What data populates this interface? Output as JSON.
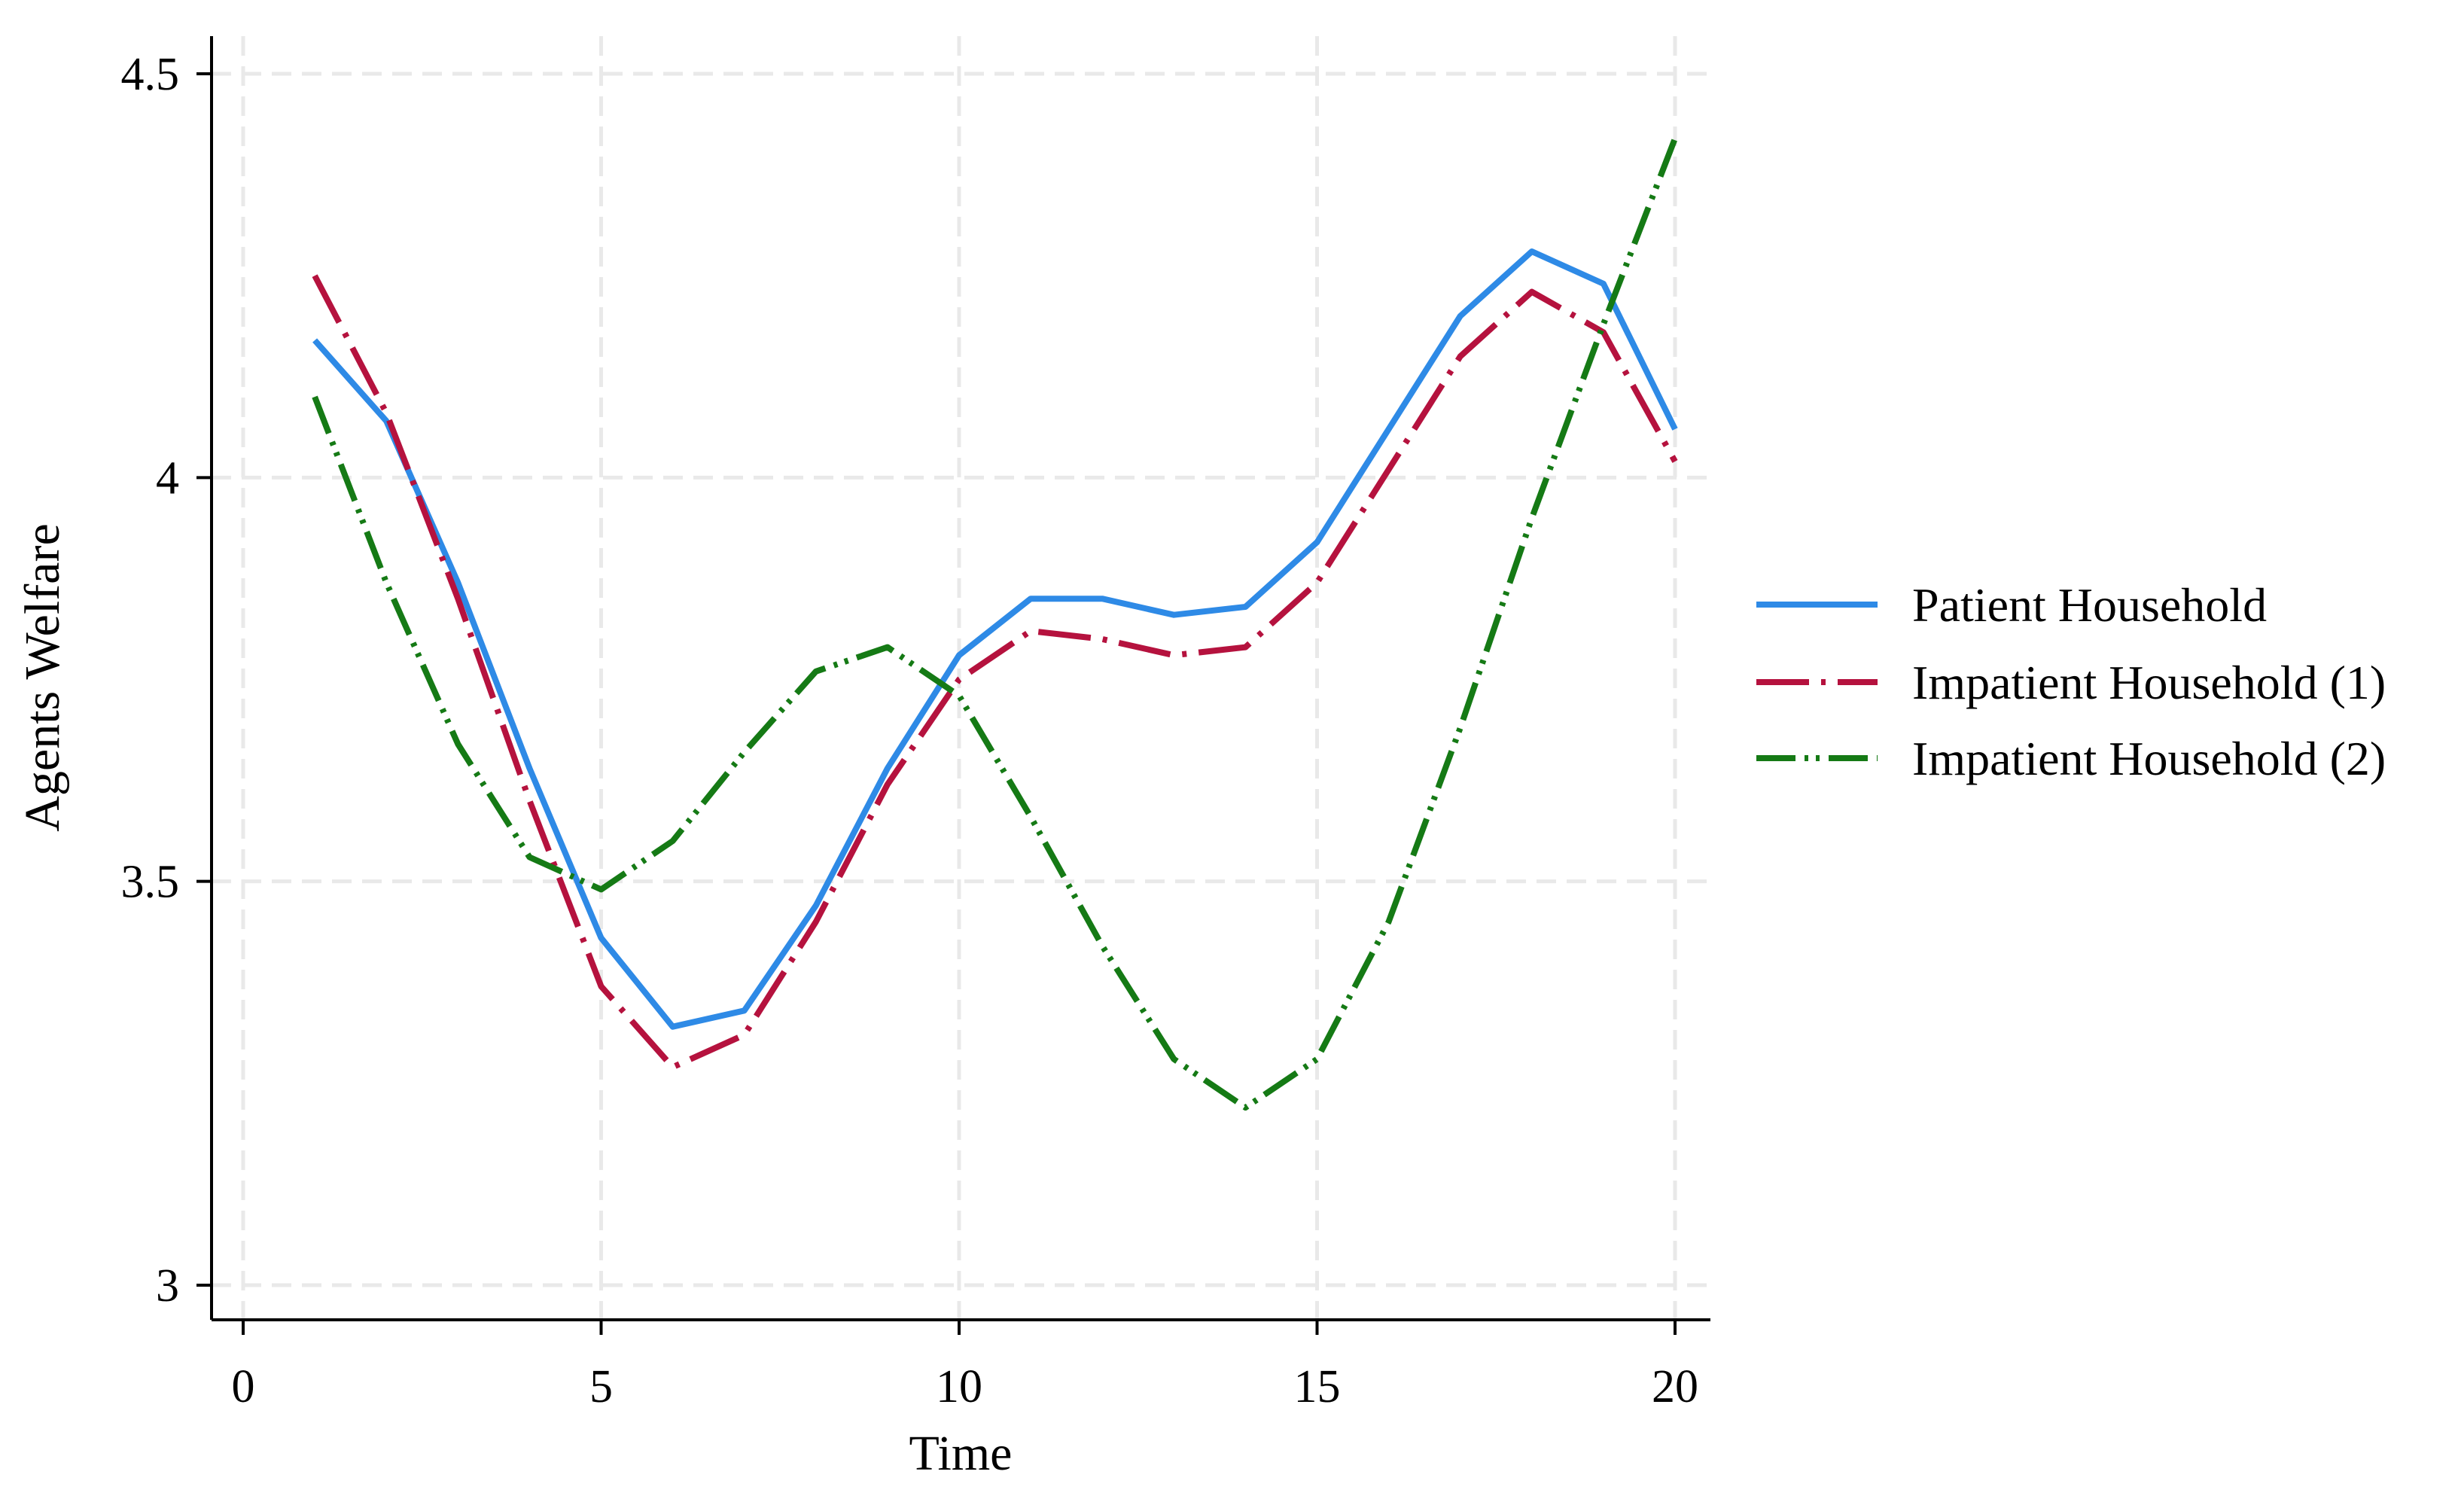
{
  "chart_data": {
    "type": "line",
    "title": "",
    "xlabel": "Time",
    "ylabel": "Agents Welfare",
    "xlim": [
      0,
      20
    ],
    "ylim": [
      3,
      4.5
    ],
    "xticks": [
      0,
      5,
      10,
      15,
      20
    ],
    "yticks": [
      3,
      3.5,
      4,
      4.5
    ],
    "xtick_labels": [
      "0",
      "5",
      "10",
      "15",
      "20"
    ],
    "ytick_labels": [
      "3",
      "3.5",
      "4",
      "4.5"
    ],
    "grid": true,
    "legend_position": "right",
    "x": [
      1,
      2,
      3,
      4,
      5,
      6,
      7,
      8,
      9,
      10,
      11,
      12,
      13,
      14,
      15,
      16,
      17,
      18,
      19,
      20
    ],
    "series": [
      {
        "name": "Patient Household",
        "color": "#2E8AE6",
        "line_style": "solid",
        "values": [
          4.17,
          4.07,
          3.87,
          3.64,
          3.43,
          3.32,
          3.34,
          3.47,
          3.64,
          3.78,
          3.85,
          3.85,
          3.83,
          3.84,
          3.92,
          4.06,
          4.2,
          4.28,
          4.24,
          4.06
        ]
      },
      {
        "name": "Impatient Household (1)",
        "color": "#B5123E",
        "line_style": "longdash-dot",
        "values": [
          4.25,
          4.08,
          3.85,
          3.6,
          3.37,
          3.27,
          3.31,
          3.45,
          3.62,
          3.75,
          3.81,
          3.8,
          3.78,
          3.79,
          3.87,
          4.01,
          4.15,
          4.23,
          4.18,
          4.02
        ]
      },
      {
        "name": "Impatient Household (2)",
        "color": "#157A15",
        "line_style": "dash-dot-dot",
        "values": [
          4.1,
          3.87,
          3.67,
          3.53,
          3.49,
          3.55,
          3.66,
          3.76,
          3.79,
          3.73,
          3.58,
          3.42,
          3.28,
          3.22,
          3.28,
          3.45,
          3.69,
          3.95,
          4.19,
          4.42
        ]
      }
    ]
  }
}
